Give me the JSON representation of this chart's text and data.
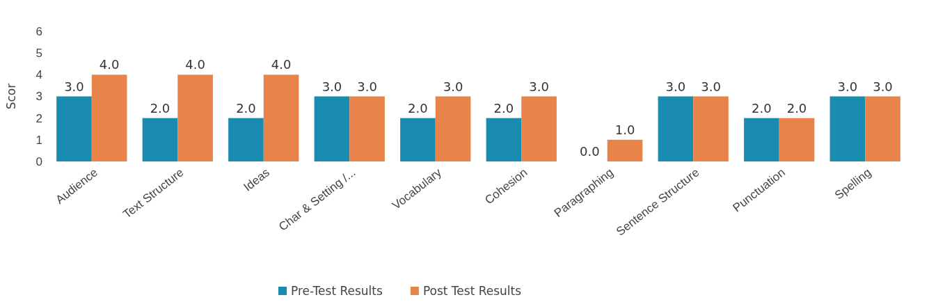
{
  "chart_data": {
    "type": "bar",
    "ylabel": "Scor",
    "categories": [
      "Audience",
      "Text Structure",
      "Ideas",
      "Char & Setting /...",
      "Vocabulary",
      "Cohesion",
      "Paragraphing",
      "Sentence Structure",
      "Punctuation",
      "Spelling"
    ],
    "series": [
      {
        "name": "Pre-Test Results",
        "color": "#1a8cb0",
        "values": [
          3,
          2,
          2,
          3,
          2,
          2,
          0,
          3,
          2,
          3
        ],
        "value_labels": [
          "3.0",
          "2.0",
          "2.0",
          "3.0",
          "2.0",
          "2.0",
          "0.0",
          "3.0",
          "2.0",
          "3.0"
        ]
      },
      {
        "name": "Post Test Results",
        "color": "#e8844a",
        "values": [
          4,
          4,
          4,
          3,
          3,
          3,
          1,
          3,
          2,
          3
        ],
        "value_labels": [
          "4.0",
          "4.0",
          "4.0",
          "3.0",
          "3.0",
          "3.0",
          "1.0",
          "3.0",
          "2.0",
          "3.0"
        ]
      }
    ],
    "ylim": [
      0,
      6
    ],
    "yticks": [
      0,
      1,
      2,
      3,
      4,
      5,
      6
    ],
    "grid": false,
    "legend": "bottom"
  }
}
